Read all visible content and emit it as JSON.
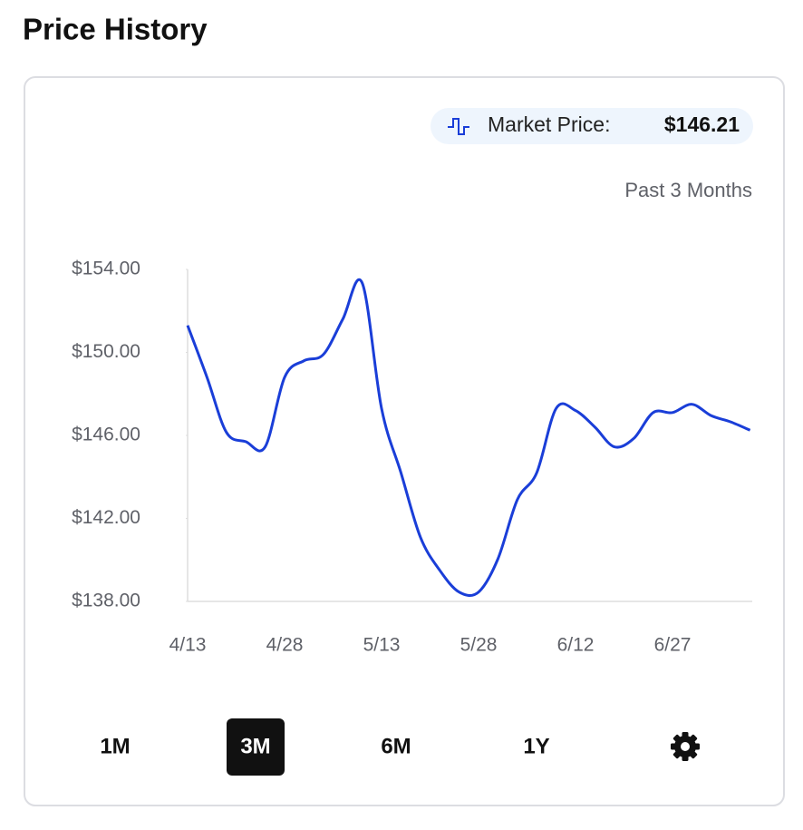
{
  "header": {
    "title": "Price History"
  },
  "market_price": {
    "label": "Market Price:",
    "value": "$146.21"
  },
  "period": "Past 3 Months",
  "chart_data": {
    "type": "line",
    "color": "#1a3ed8",
    "categories": [
      "4/13",
      null,
      null,
      null,
      null,
      "4/28",
      null,
      null,
      null,
      null,
      "5/13",
      null,
      null,
      null,
      null,
      "5/28",
      null,
      null,
      null,
      null,
      "6/12",
      null,
      null,
      null,
      null,
      "6/27",
      null,
      null,
      null,
      null
    ],
    "values": [
      151.3,
      148.8,
      146.15,
      145.7,
      145.45,
      148.8,
      149.6,
      149.9,
      151.6,
      153.35,
      147.3,
      144.2,
      141.1,
      139.5,
      138.45,
      138.45,
      140.05,
      142.9,
      144.2,
      147.3,
      147.2,
      146.4,
      145.45,
      145.85,
      147.1,
      147.1,
      147.5,
      146.95,
      146.65,
      146.25
    ],
    "ylim": [
      138,
      154
    ],
    "yticks": [
      {
        "value": 154,
        "label": "$154.00"
      },
      {
        "value": 150,
        "label": "$150.00"
      },
      {
        "value": 146,
        "label": "$146.00"
      },
      {
        "value": 142,
        "label": "$142.00"
      },
      {
        "value": 138,
        "label": "$138.00"
      }
    ]
  },
  "range_buttons": [
    "1M",
    "3M",
    "6M",
    "1Y"
  ],
  "selected_range": 1
}
